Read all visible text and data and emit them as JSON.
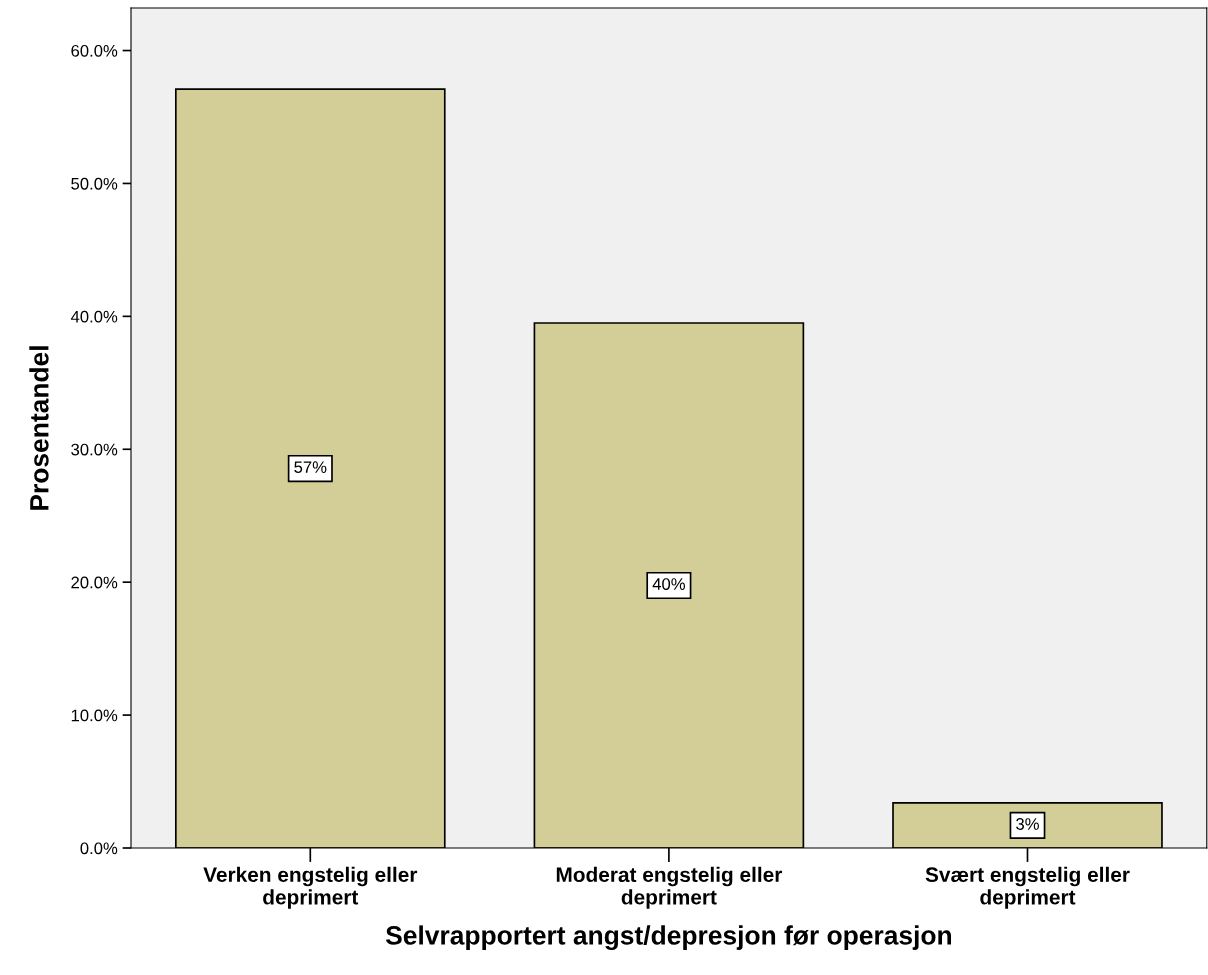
{
  "chart_data": {
    "type": "bar",
    "xlabel": "Selvrapportert angst/depresjon før operasjon",
    "ylabel": "Prosentandel",
    "categories": [
      "Verken engstelig eller deprimert",
      "Moderat engstelig eller deprimert",
      "Svært engstelig eller deprimert"
    ],
    "values": [
      57.1,
      39.5,
      3.4
    ],
    "value_labels": [
      "57%",
      "40%",
      "3%"
    ],
    "color": "#d3ce97",
    "ylim": [
      0,
      63.2
    ],
    "yticks": [
      {
        "value": 0,
        "label": "0.0%"
      },
      {
        "value": 10,
        "label": "10.0%"
      },
      {
        "value": 20,
        "label": "20.0%"
      },
      {
        "value": 30,
        "label": "30.0%"
      },
      {
        "value": 40,
        "label": "40.0%"
      },
      {
        "value": 50,
        "label": "50.0%"
      },
      {
        "value": 60,
        "label": "60.0%"
      }
    ],
    "grid": false,
    "legend": false
  }
}
